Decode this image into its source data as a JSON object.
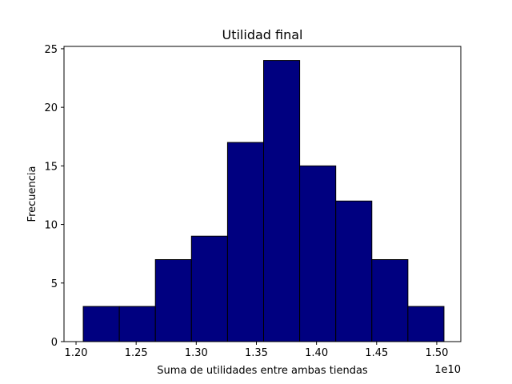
{
  "chart_data": {
    "type": "bar",
    "title": "Utilidad final",
    "xlabel": "Suma de utilidades entre ambas tiendas",
    "ylabel": "Frecuencia",
    "x_offset_text": "1e10",
    "bin_edges": [
      1.206,
      1.236,
      1.266,
      1.296,
      1.326,
      1.356,
      1.386,
      1.416,
      1.446,
      1.476,
      1.506
    ],
    "values": [
      3,
      3,
      7,
      9,
      17,
      24,
      15,
      12,
      7,
      3
    ],
    "xlim": [
      1.19,
      1.52
    ],
    "ylim": [
      0,
      25.2
    ],
    "x_ticks": [
      1.2,
      1.25,
      1.3,
      1.35,
      1.4,
      1.45,
      1.5
    ],
    "x_tick_labels": [
      "1.20",
      "1.25",
      "1.30",
      "1.35",
      "1.40",
      "1.45",
      "1.50"
    ],
    "y_ticks": [
      0,
      5,
      10,
      15,
      20,
      25
    ],
    "y_tick_labels": [
      "0",
      "5",
      "10",
      "15",
      "20",
      "25"
    ],
    "grid": false,
    "colors": {
      "bar_fill": "#000080",
      "bar_edge": "#000000",
      "axes": "#000000",
      "background": "#ffffff"
    }
  }
}
